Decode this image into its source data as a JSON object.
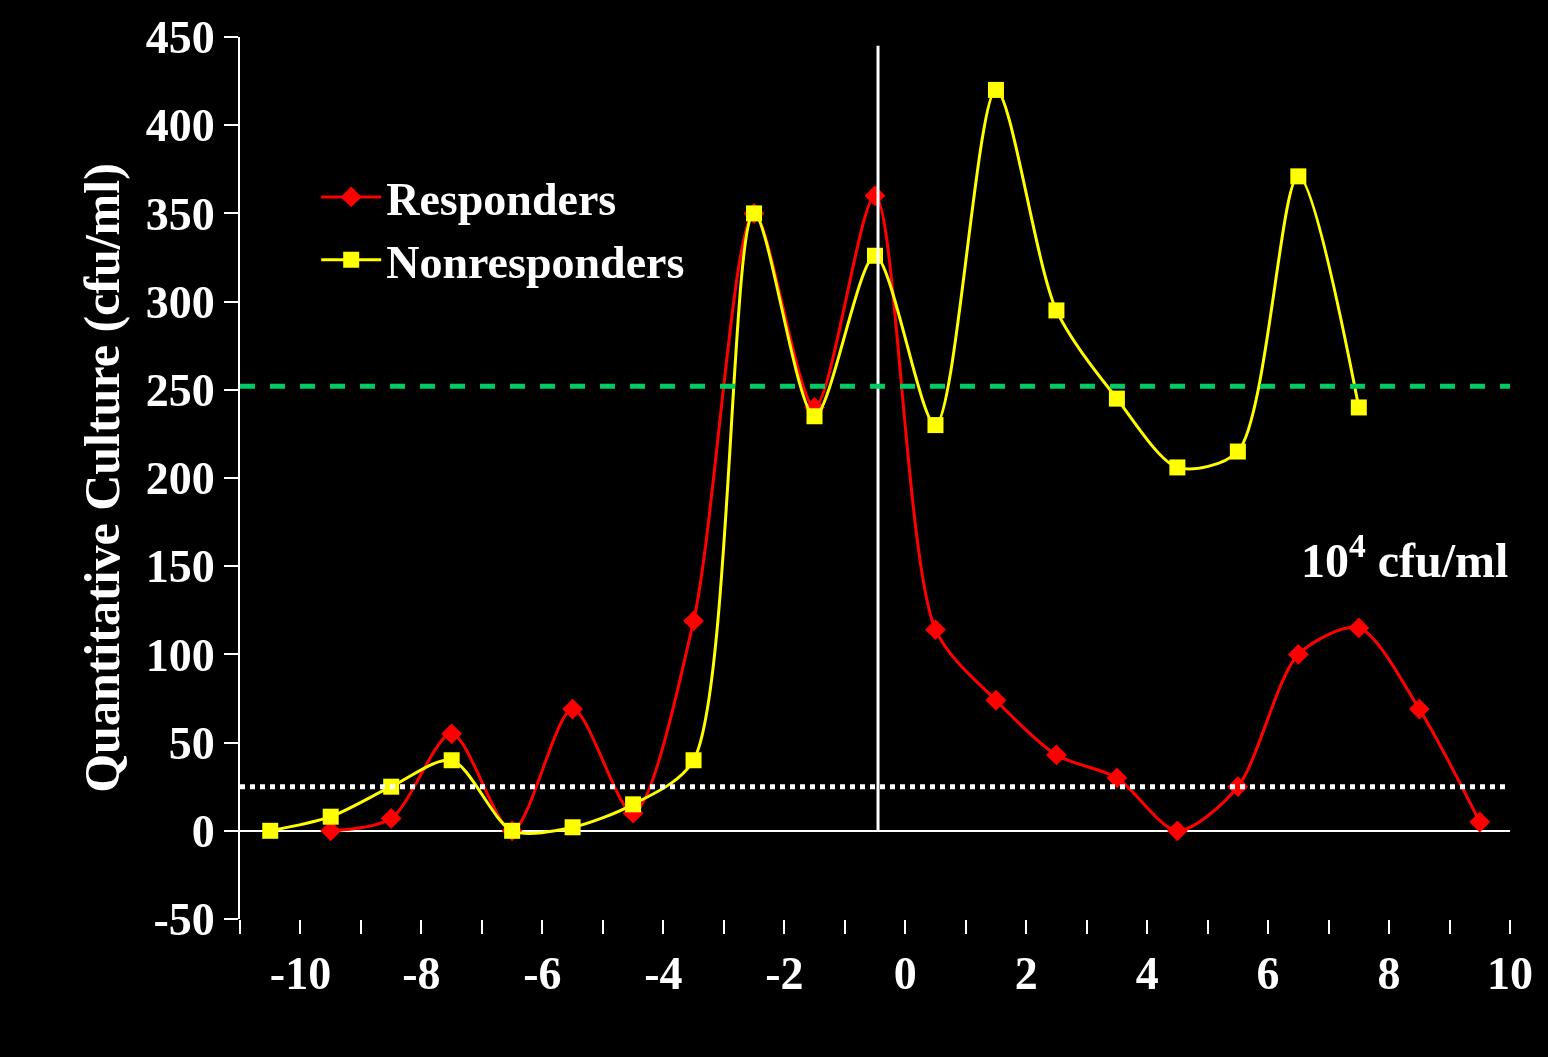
{
  "chart_data": {
    "type": "line",
    "ylabel": "Quantitative Culture (cfu/ml)",
    "annotations": [
      "10$^{4}$ cfu/ml"
    ],
    "series": [
      {
        "name": "Responders",
        "color": "#ff0000",
        "marker": "diamond",
        "x": [
          -9.5,
          -8.5,
          -7.5,
          -6.5,
          -5.5,
          -4.5,
          -3.5,
          -2.5,
          -1.5,
          -0.5,
          0.5,
          1.5,
          2.5,
          3.5,
          4.5,
          5.5,
          6.5,
          7.5,
          8.5,
          9.5
        ],
        "values": [
          0,
          7,
          55,
          0,
          69,
          10,
          119,
          350,
          240,
          360,
          114,
          74,
          43,
          30,
          0,
          25,
          100,
          115,
          69,
          5
        ]
      },
      {
        "name": "Nonresponders",
        "color": "#ffff00",
        "marker": "square",
        "x": [
          -10.5,
          -9.5,
          -8.5,
          -7.5,
          -6.5,
          -5.5,
          -4.5,
          -3.5,
          -2.5,
          -1.5,
          -0.5,
          0.5,
          1.5,
          2.5,
          3.5,
          4.5,
          5.5,
          6.5,
          7.5
        ],
        "values": [
          0,
          8,
          25,
          40,
          0,
          2,
          15,
          40,
          350,
          235,
          326,
          230,
          420,
          295,
          245,
          206,
          215,
          371,
          240
        ]
      }
    ],
    "xlim": [
      -11,
      10
    ],
    "xticks": [
      {
        "value": -11,
        "label": null
      },
      -10,
      {
        "value": -9,
        "label": null
      },
      -8,
      {
        "value": -7,
        "label": null
      },
      -6,
      {
        "value": -5,
        "label": null
      },
      -4,
      {
        "value": -3,
        "label": null
      },
      -2,
      {
        "value": -1,
        "label": null
      },
      0,
      {
        "value": 1,
        "label": null
      },
      2,
      {
        "value": 3,
        "label": null
      },
      4,
      {
        "value": 5,
        "label": null
      },
      6,
      {
        "value": 7,
        "label": null
      },
      8,
      {
        "value": 9,
        "label": null
      },
      10
    ],
    "ylim": [
      -50,
      450
    ],
    "yticks": [
      -50,
      0,
      50,
      100,
      150,
      200,
      250,
      300,
      350,
      400,
      450
    ],
    "ref_lines": [
      {
        "axis": "x",
        "value": -0.45,
        "color": "#ffffff",
        "line_style": "solid"
      },
      {
        "axis": "y",
        "value": 252,
        "color": "#00cc66",
        "line_style": "dashed"
      },
      {
        "axis": "y",
        "value": 25,
        "color": "#ffffff",
        "line_style": "dotted"
      }
    ],
    "grid": false,
    "legend": "top left"
  }
}
